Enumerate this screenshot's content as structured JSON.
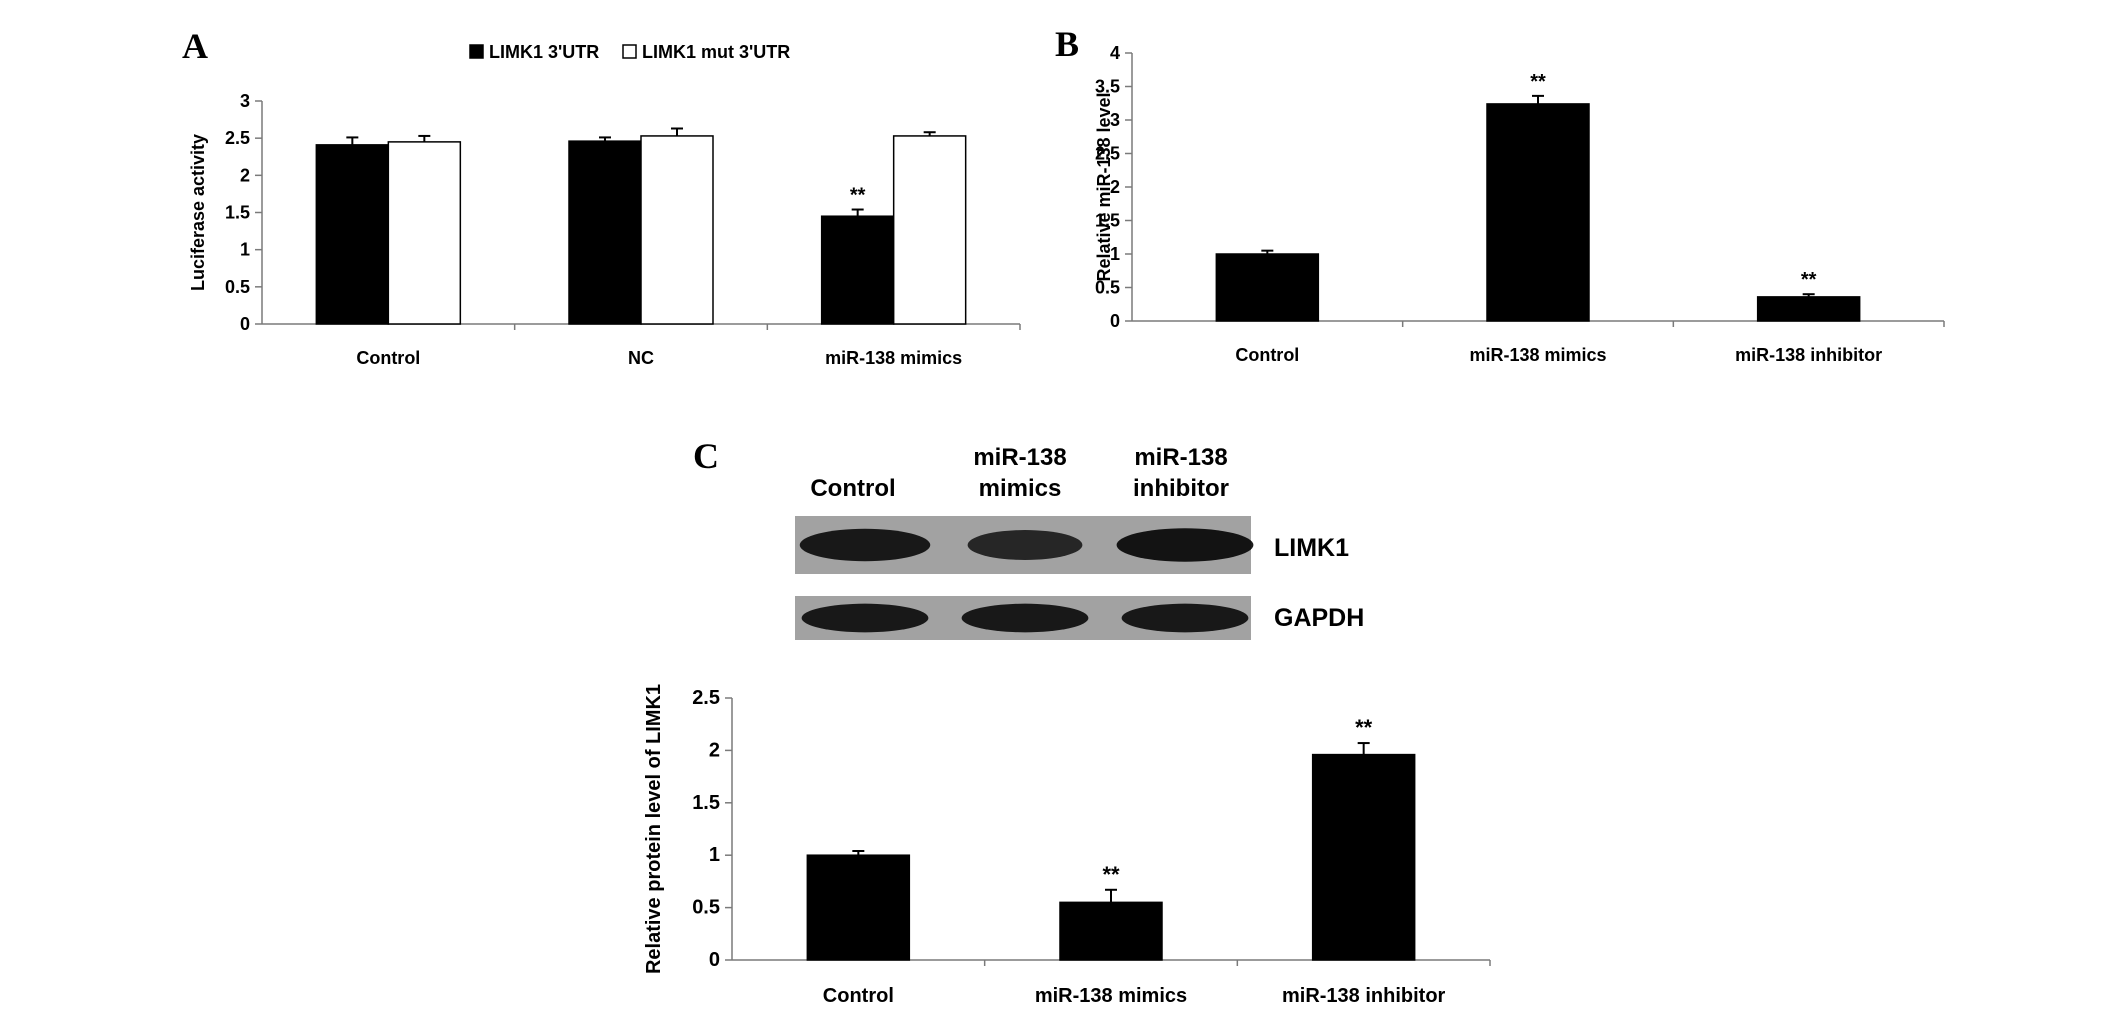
{
  "panels": {
    "a": "A",
    "b": "B",
    "c": "C"
  },
  "blot": {
    "lane_labels": [
      [
        "Control"
      ],
      [
        "miR-138",
        "mimics"
      ],
      [
        "miR-138",
        "inhibitor"
      ]
    ],
    "row_labels": [
      "LIMK1",
      "GAPDH"
    ],
    "band_intensity": {
      "LIMK1": [
        0.85,
        0.6,
        0.95
      ],
      "GAPDH": [
        0.85,
        0.85,
        0.85
      ]
    }
  },
  "chart_data": [
    {
      "panel": "A",
      "type": "bar",
      "title": "",
      "xlabel": "",
      "ylabel": "Luciferase activity",
      "categories": [
        "Control",
        "NC",
        "miR-138 mimics"
      ],
      "series": [
        {
          "name": "LIMK1 3'UTR",
          "values": [
            2.41,
            2.46,
            1.45
          ],
          "errors": [
            0.1,
            0.05,
            0.09
          ],
          "fill": "#000000"
        },
        {
          "name": "LIMK1 mut 3'UTR",
          "values": [
            2.45,
            2.53,
            2.53
          ],
          "errors": [
            0.08,
            0.1,
            0.05
          ],
          "fill": "#ffffff"
        }
      ],
      "annotations": [
        {
          "category": 2,
          "series": 0,
          "text": "**"
        }
      ],
      "ylim": [
        0,
        3
      ],
      "yticks": [
        "0",
        "0.5",
        "1",
        "1.5",
        "2",
        "2.5",
        "3"
      ],
      "legend": "top-center",
      "grid": false
    },
    {
      "panel": "B",
      "type": "bar",
      "title": "",
      "xlabel": "",
      "ylabel": "Relative miR-138 level",
      "categories": [
        "Control",
        "miR-138 mimics",
        "miR-138 inhibitor"
      ],
      "values": [
        1.0,
        3.24,
        0.36
      ],
      "errors": [
        0.05,
        0.12,
        0.04
      ],
      "annotations": [
        "",
        "**",
        "**"
      ],
      "ylim": [
        0,
        4
      ],
      "yticks": [
        "0",
        "0.5",
        "1",
        "1.5",
        "2",
        "2.5",
        "3",
        "3.5",
        "4"
      ],
      "grid": false
    },
    {
      "panel": "C",
      "type": "bar",
      "title": "",
      "xlabel": "",
      "ylabel": "Relative protein level of LIMK1",
      "categories": [
        "Control",
        "miR-138 mimics",
        "miR-138 inhibitor"
      ],
      "values": [
        1.0,
        0.55,
        1.96
      ],
      "errors": [
        0.04,
        0.12,
        0.11
      ],
      "annotations": [
        "",
        "**",
        "**"
      ],
      "ylim": [
        0,
        2.5
      ],
      "yticks": [
        "0",
        "0.5",
        "1",
        "1.5",
        "2",
        "2.5"
      ],
      "grid": false
    }
  ]
}
